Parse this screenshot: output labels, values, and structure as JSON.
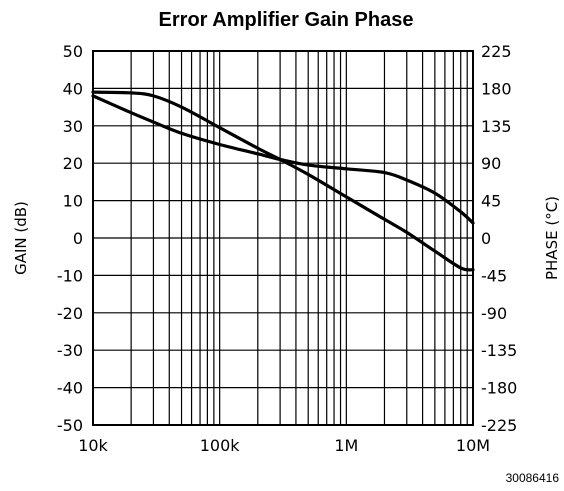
{
  "chart_data": {
    "type": "line",
    "title": "Error Amplifier Gain Phase",
    "x_scale": "log",
    "xlim": [
      10000,
      10000000
    ],
    "x_tick_values": [
      10000,
      100000,
      1000000,
      10000000
    ],
    "x_tick_labels": [
      "10k",
      "100k",
      "1M",
      "10M"
    ],
    "ylabel": "GAIN (dB)",
    "ylim": [
      -50,
      50
    ],
    "y_ticks": [
      50,
      40,
      30,
      20,
      10,
      0,
      -10,
      -20,
      -30,
      -40,
      -50
    ],
    "y_tick_labels": [
      "50",
      "40",
      "30",
      "20",
      "10",
      "0",
      "-10",
      "-20",
      "-30",
      "-40",
      "-50"
    ],
    "y2label": "PHASE (°C)",
    "y2lim": [
      -225,
      225
    ],
    "y2_tick_labels": [
      "225",
      "180",
      "135",
      "90",
      "45",
      "0",
      "-45",
      "-90",
      "-135",
      "-180",
      "-225"
    ],
    "grid": true,
    "series": [
      {
        "axis": "left",
        "x": [
          10000,
          20000,
          30000,
          50000,
          100000,
          200000,
          300000,
          500000,
          1000000,
          2000000,
          3000000,
          5000000,
          8000000,
          10000000
        ],
        "y": [
          38,
          33.5,
          31,
          28,
          25,
          22.5,
          21,
          19.5,
          18.5,
          17.5,
          15.5,
          12,
          7,
          4
        ]
      },
      {
        "axis": "left",
        "x": [
          10000,
          20000,
          30000,
          50000,
          100000,
          200000,
          300000,
          500000,
          1000000,
          2000000,
          3000000,
          5000000,
          8000000,
          10000000
        ],
        "y": [
          39,
          38.8,
          38,
          35,
          29.5,
          24,
          21,
          17,
          11,
          5,
          1.5,
          -3.5,
          -8,
          -8.5
        ]
      }
    ]
  },
  "figure_code": "30086416",
  "colors": {
    "line": "#000000",
    "grid": "#000000",
    "background": "#ffffff"
  }
}
